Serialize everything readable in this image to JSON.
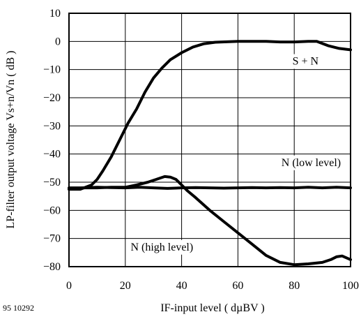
{
  "figure_id": "95 10292",
  "chart_data": {
    "type": "line",
    "xlabel": "IF-input level ( dµBV )",
    "ylabel": "LP-filter output voltage Vs+n/Vn ( dB )",
    "xlim": [
      0,
      100
    ],
    "ylim": [
      -80,
      10
    ],
    "xticks": [
      0,
      20,
      40,
      60,
      80,
      100
    ],
    "yticks": [
      10,
      0,
      -10,
      -20,
      -30,
      -40,
      -50,
      -60,
      -70,
      -80
    ],
    "grid": true,
    "annotations": [
      {
        "text": "S + N",
        "x": 84,
        "y": -7
      },
      {
        "text": "N (low level)",
        "x": 86,
        "y": -43
      },
      {
        "text": "N (high level)",
        "x": 33,
        "y": -73
      }
    ],
    "series": [
      {
        "values": [
          [
            0,
            -52.5
          ],
          [
            4,
            -52.5
          ],
          [
            8,
            -51
          ],
          [
            10,
            -49
          ],
          [
            12,
            -46
          ],
          [
            15,
            -41
          ],
          [
            18,
            -35
          ],
          [
            21,
            -29
          ],
          [
            24,
            -24
          ],
          [
            27,
            -18
          ],
          [
            30,
            -13
          ],
          [
            33,
            -9.5
          ],
          [
            36,
            -6.5
          ],
          [
            40,
            -4
          ],
          [
            44,
            -2
          ],
          [
            48,
            -0.8
          ],
          [
            52,
            -0.3
          ],
          [
            60,
            0
          ],
          [
            70,
            0
          ],
          [
            75,
            -0.2
          ],
          [
            80,
            -0.2
          ],
          [
            85,
            0
          ],
          [
            88,
            0
          ],
          [
            92,
            -1.5
          ],
          [
            96,
            -2.5
          ],
          [
            100,
            -3
          ]
        ]
      },
      {
        "values": [
          [
            0,
            -52
          ],
          [
            5,
            -52
          ],
          [
            10,
            -51.8
          ],
          [
            15,
            -51.9
          ],
          [
            20,
            -52
          ],
          [
            25,
            -51.8
          ],
          [
            30,
            -52
          ],
          [
            35,
            -52.2
          ],
          [
            40,
            -52
          ],
          [
            45,
            -51.9
          ],
          [
            50,
            -52
          ],
          [
            55,
            -52.1
          ],
          [
            60,
            -52
          ],
          [
            65,
            -51.9
          ],
          [
            70,
            -52
          ],
          [
            75,
            -51.9
          ],
          [
            80,
            -52
          ],
          [
            85,
            -51.8
          ],
          [
            90,
            -52
          ],
          [
            95,
            -51.8
          ],
          [
            100,
            -52
          ]
        ]
      },
      {
        "values": [
          [
            0,
            -52.5
          ],
          [
            5,
            -52
          ],
          [
            10,
            -52
          ],
          [
            15,
            -51.8
          ],
          [
            20,
            -51.8
          ],
          [
            24,
            -51
          ],
          [
            28,
            -50
          ],
          [
            31,
            -49
          ],
          [
            34,
            -48
          ],
          [
            36,
            -48.2
          ],
          [
            38,
            -49
          ],
          [
            40,
            -51
          ],
          [
            42,
            -53
          ],
          [
            45,
            -55.5
          ],
          [
            50,
            -60
          ],
          [
            55,
            -64
          ],
          [
            60,
            -68
          ],
          [
            65,
            -72
          ],
          [
            70,
            -76
          ],
          [
            75,
            -78.5
          ],
          [
            80,
            -79.3
          ],
          [
            85,
            -79
          ],
          [
            90,
            -78.5
          ],
          [
            93,
            -77.5
          ],
          [
            95,
            -76.5
          ],
          [
            97,
            -76.2
          ],
          [
            100,
            -77.5
          ]
        ]
      }
    ]
  }
}
